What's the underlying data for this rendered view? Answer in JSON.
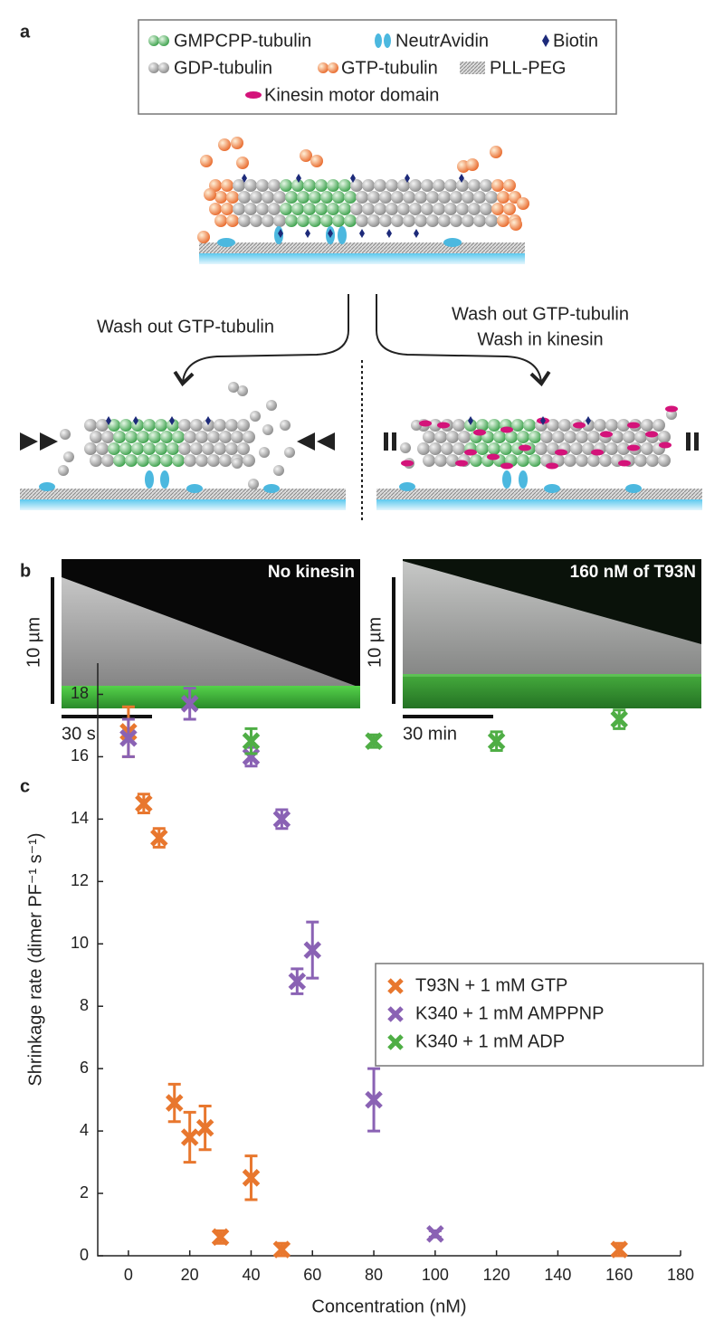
{
  "panel_a": {
    "label": "a",
    "legend": [
      "GMPCPP-tubulin",
      "NeutrAvidin",
      "Biotin",
      "GDP-tubulin",
      "GTP-tubulin",
      "PLL-PEG",
      "Kinesin motor domain"
    ],
    "left_step": "Wash out GTP-tubulin",
    "right_step": [
      "Wash out GTP-tubulin",
      "Wash in kinesin"
    ]
  },
  "panel_b": {
    "label": "b",
    "left": {
      "title": "No kinesin",
      "length_bar": "10 µm",
      "time_bar": "30 s"
    },
    "right": {
      "title": "160 nM of T93N",
      "length_bar": "10 µm",
      "time_bar": "30 min"
    }
  },
  "chart_data": {
    "type": "scatter",
    "panel_label": "c",
    "x_label": "Concentration (nM)",
    "y_label": "Shrinkage rate (dimer PF⁻¹ s⁻¹)",
    "xlim": [
      -10,
      180
    ],
    "xticks": [
      0,
      20,
      40,
      60,
      80,
      100,
      120,
      140,
      160,
      180
    ],
    "ylim": [
      0,
      19
    ],
    "yticks": [
      0,
      2,
      4,
      6,
      8,
      10,
      12,
      14,
      16,
      18
    ],
    "legend": "right",
    "series": [
      {
        "name": "T93N + 1 mM GTP",
        "color": "#e8772e",
        "x": [
          0,
          5,
          10,
          15,
          20,
          25,
          30,
          40,
          50,
          160
        ],
        "values": [
          16.8,
          14.5,
          13.4,
          4.9,
          3.8,
          4.1,
          0.6,
          2.5,
          0.2,
          0.2
        ],
        "errors": [
          0.8,
          0.3,
          0.3,
          0.6,
          0.8,
          0.7,
          0.2,
          0.7,
          0.2,
          0.2
        ]
      },
      {
        "name": "K340 + 1 mM AMPPNP",
        "color": "#8a62b4",
        "x": [
          0,
          20,
          40,
          50,
          55,
          60,
          80,
          100
        ],
        "values": [
          16.6,
          17.7,
          16.0,
          14.0,
          8.8,
          9.8,
          5.0,
          0.7
        ],
        "errors": [
          0.6,
          0.5,
          0.3,
          0.3,
          0.4,
          0.9,
          1.0,
          0.1
        ]
      },
      {
        "name": "K340 + 1 mM ADP",
        "color": "#4fae45",
        "x": [
          40,
          80,
          120,
          160
        ],
        "values": [
          16.5,
          16.5,
          16.5,
          17.2
        ],
        "errors": [
          0.4,
          0.2,
          0.3,
          0.3
        ]
      }
    ]
  }
}
